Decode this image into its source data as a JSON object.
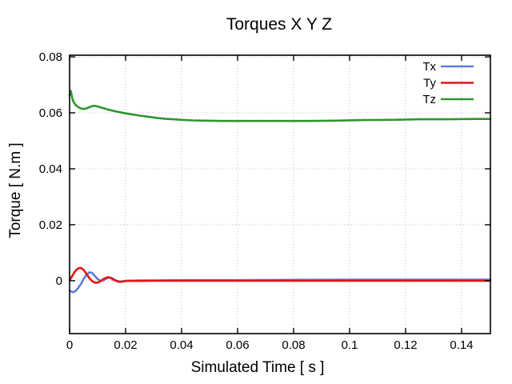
{
  "chart_data": {
    "type": "line",
    "title": "Torques X Y Z",
    "xlabel": "Simulated Time [ s ]",
    "ylabel": "Torque [ N.m ]",
    "xlim": [
      0,
      0.1503
    ],
    "ylim": [
      -0.0189,
      0.0806
    ],
    "grid": true,
    "legend_position": "top-right-inside",
    "background_color": "#ffffff",
    "grid_color": "#b9b9b9",
    "border_color": "#000000",
    "xticks": [
      {
        "v": 0,
        "label": "0"
      },
      {
        "v": 0.02,
        "label": "0.02"
      },
      {
        "v": 0.04,
        "label": "0.04"
      },
      {
        "v": 0.06,
        "label": "0.06"
      },
      {
        "v": 0.08,
        "label": "0.08"
      },
      {
        "v": 0.1,
        "label": "0.1"
      },
      {
        "v": 0.12,
        "label": "0.12"
      },
      {
        "v": 0.14,
        "label": "0.14"
      }
    ],
    "yticks": [
      {
        "v": 0,
        "label": "0"
      },
      {
        "v": 0.02,
        "label": "0.02"
      },
      {
        "v": 0.04,
        "label": "0.04"
      },
      {
        "v": 0.06,
        "label": "0.06"
      },
      {
        "v": 0.08,
        "label": "0.08"
      }
    ],
    "series": [
      {
        "name": "Tx",
        "color": "#5b7dda",
        "points": [
          [
            0,
            -0.0035
          ],
          [
            0.001,
            -0.0041
          ],
          [
            0.002,
            -0.0038
          ],
          [
            0.003,
            -0.0027
          ],
          [
            0.004,
            -0.0012
          ],
          [
            0.005,
            0.0006
          ],
          [
            0.006,
            0.0021
          ],
          [
            0.007,
            0.003
          ],
          [
            0.008,
            0.0028
          ],
          [
            0.009,
            0.0017
          ],
          [
            0.01,
            0.0006
          ],
          [
            0.011,
            0.0
          ],
          [
            0.012,
            0.0001
          ],
          [
            0.013,
            0.0007
          ],
          [
            0.014,
            0.0011
          ],
          [
            0.015,
            0.001
          ],
          [
            0.016,
            0.0004
          ],
          [
            0.017,
            -0.0001
          ],
          [
            0.018,
            -0.0003
          ],
          [
            0.019,
            -0.0002
          ],
          [
            0.02,
            -0.0001
          ],
          [
            0.022,
            0.0
          ],
          [
            0.025,
            0.0001
          ],
          [
            0.03,
            0.0001
          ],
          [
            0.04,
            0.0002
          ],
          [
            0.06,
            0.0002
          ],
          [
            0.08,
            0.0003
          ],
          [
            0.1,
            0.0004
          ],
          [
            0.12,
            0.0004
          ],
          [
            0.14,
            0.0004
          ],
          [
            0.1503,
            0.0004
          ]
        ]
      },
      {
        "name": "Ty",
        "color": "#e41414",
        "points": [
          [
            0,
            0.0002
          ],
          [
            0.001,
            0.0018
          ],
          [
            0.002,
            0.0034
          ],
          [
            0.003,
            0.0044
          ],
          [
            0.004,
            0.0046
          ],
          [
            0.005,
            0.0039
          ],
          [
            0.006,
            0.0025
          ],
          [
            0.007,
            0.001
          ],
          [
            0.008,
            -0.0001
          ],
          [
            0.009,
            -0.0007
          ],
          [
            0.01,
            -0.0007
          ],
          [
            0.011,
            -0.0002
          ],
          [
            0.012,
            0.0005
          ],
          [
            0.013,
            0.0011
          ],
          [
            0.014,
            0.0013
          ],
          [
            0.015,
            0.0008
          ],
          [
            0.016,
            0.0002
          ],
          [
            0.017,
            -0.0002
          ],
          [
            0.018,
            -0.0004
          ],
          [
            0.019,
            -0.0003
          ],
          [
            0.02,
            -0.0001
          ],
          [
            0.022,
            0.0
          ],
          [
            0.025,
            -0.0001
          ],
          [
            0.03,
            0.0
          ],
          [
            0.05,
            0.0
          ],
          [
            0.08,
            0.0
          ],
          [
            0.11,
            0.0
          ],
          [
            0.1503,
            0.0
          ]
        ]
      },
      {
        "name": "Tz",
        "color": "#2e962e",
        "points": [
          [
            0,
            0.0663
          ],
          [
            0.0004,
            0.0679
          ],
          [
            0.001,
            0.065
          ],
          [
            0.0015,
            0.0638
          ],
          [
            0.002,
            0.063
          ],
          [
            0.003,
            0.0621
          ],
          [
            0.004,
            0.0616
          ],
          [
            0.005,
            0.0614
          ],
          [
            0.006,
            0.0616
          ],
          [
            0.007,
            0.062
          ],
          [
            0.008,
            0.0624
          ],
          [
            0.009,
            0.0625
          ],
          [
            0.01,
            0.0623
          ],
          [
            0.011,
            0.062
          ],
          [
            0.012,
            0.0617
          ],
          [
            0.014,
            0.0611
          ],
          [
            0.016,
            0.0606
          ],
          [
            0.018,
            0.0602
          ],
          [
            0.02,
            0.0598
          ],
          [
            0.022,
            0.0595
          ],
          [
            0.025,
            0.059
          ],
          [
            0.028,
            0.0586
          ],
          [
            0.031,
            0.0582
          ],
          [
            0.034,
            0.0579
          ],
          [
            0.037,
            0.0577
          ],
          [
            0.04,
            0.0575
          ],
          [
            0.044,
            0.0573
          ],
          [
            0.048,
            0.0572
          ],
          [
            0.055,
            0.0571
          ],
          [
            0.065,
            0.0571
          ],
          [
            0.075,
            0.0571
          ],
          [
            0.085,
            0.0571
          ],
          [
            0.095,
            0.0572
          ],
          [
            0.105,
            0.0574
          ],
          [
            0.115,
            0.0575
          ],
          [
            0.125,
            0.0577
          ],
          [
            0.135,
            0.0577
          ],
          [
            0.145,
            0.0578
          ],
          [
            0.1503,
            0.0578
          ]
        ]
      }
    ]
  }
}
